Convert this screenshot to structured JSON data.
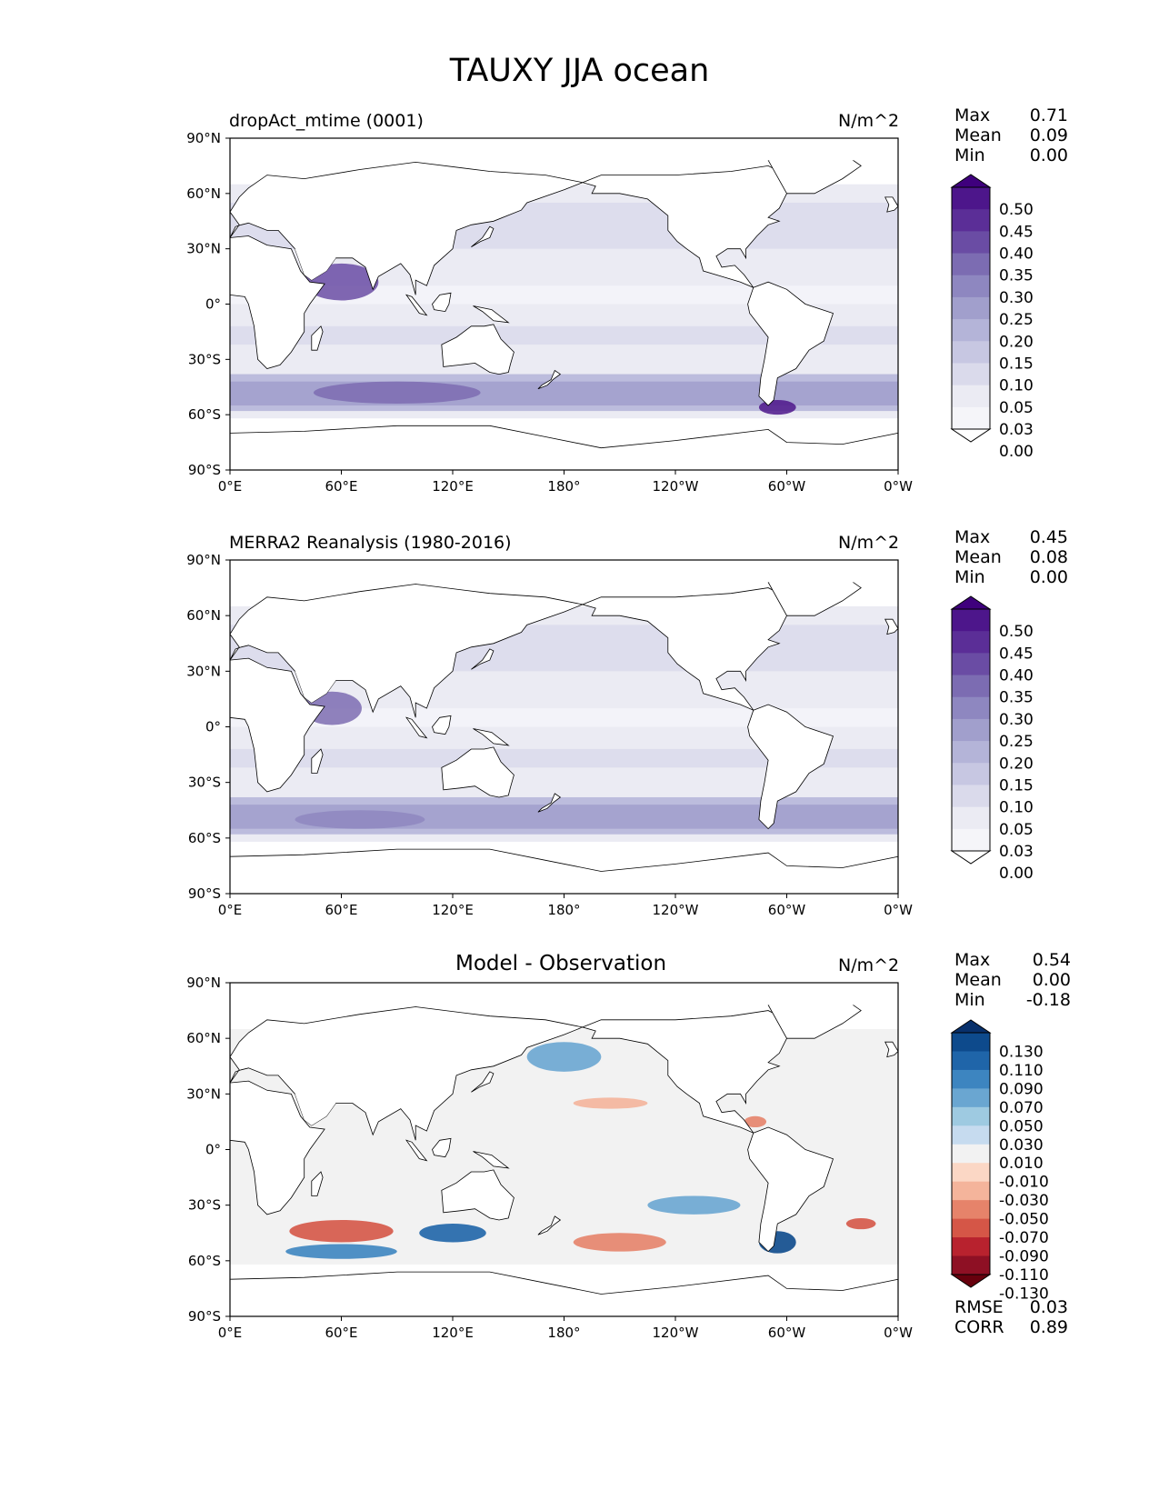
{
  "figure_title": "TAUXY JJA ocean",
  "lon_ticks": [
    "0°E",
    "60°E",
    "120°E",
    "180°",
    "120°W",
    "60°W",
    "0°W"
  ],
  "lat_ticks": [
    "90°N",
    "60°N",
    "30°N",
    "0°",
    "30°S",
    "60°S",
    "90°S"
  ],
  "panels": [
    {
      "title": "dropAct_mtime (0001)",
      "units": "N/m^2",
      "stats": {
        "labels": [
          "Max",
          "Mean",
          "Min"
        ],
        "values": [
          "0.71",
          "0.09",
          "0.00"
        ]
      },
      "colorbar": {
        "labels": [
          "0.50",
          "0.45",
          "0.40",
          "0.35",
          "0.30",
          "0.25",
          "0.20",
          "0.15",
          "0.10",
          "0.05",
          "0.03",
          "0.00"
        ],
        "colors": [
          "#3f007d",
          "#4d168b",
          "#5b2e97",
          "#6a4ca4",
          "#7c6cb2",
          "#8e87c0",
          "#a19fcc",
          "#b4b4d8",
          "#c7c7e2",
          "#dadaeb",
          "#ebebf3",
          "#f5f5f9",
          "#ffffff"
        ]
      }
    },
    {
      "title": "MERRA2 Reanalysis (1980-2016)",
      "units": "N/m^2",
      "stats": {
        "labels": [
          "Max",
          "Mean",
          "Min"
        ],
        "values": [
          "0.45",
          "0.08",
          "0.00"
        ]
      },
      "colorbar": {
        "labels": [
          "0.50",
          "0.45",
          "0.40",
          "0.35",
          "0.30",
          "0.25",
          "0.20",
          "0.15",
          "0.10",
          "0.05",
          "0.03",
          "0.00"
        ],
        "colors": [
          "#3f007d",
          "#4d168b",
          "#5b2e97",
          "#6a4ca4",
          "#7c6cb2",
          "#8e87c0",
          "#a19fcc",
          "#b4b4d8",
          "#c7c7e2",
          "#dadaeb",
          "#ebebf3",
          "#f5f5f9",
          "#ffffff"
        ]
      }
    },
    {
      "title": "Model - Observation",
      "units": "N/m^2",
      "stats": {
        "labels": [
          "Max",
          "Mean",
          "Min"
        ],
        "values": [
          "0.54",
          "0.00",
          "-0.18"
        ]
      },
      "colorbar": {
        "labels": [
          "0.130",
          "0.110",
          "0.090",
          "0.070",
          "0.050",
          "0.030",
          "0.010",
          "-0.010",
          "-0.030",
          "-0.050",
          "-0.070",
          "-0.090",
          "-0.110",
          "-0.130"
        ],
        "colors": [
          "#08306b",
          "#0d4a8c",
          "#1f65a9",
          "#3d85c0",
          "#6aa6d1",
          "#9ecae1",
          "#c6dbef",
          "#f2f2f2",
          "#fbd7c5",
          "#f4b49b",
          "#e6836a",
          "#d55647",
          "#b8222e",
          "#8e1024",
          "#67000d"
        ]
      },
      "extra_stats": {
        "labels": [
          "RMSE",
          "CORR"
        ],
        "values": [
          "0.03",
          "0.89"
        ]
      }
    }
  ],
  "chart_data": [
    {
      "type": "heatmap",
      "title": "dropAct_mtime (0001)",
      "units": "N/m^2",
      "season": "JJA",
      "xrange": [
        0,
        360
      ],
      "yrange": [
        -90,
        90
      ],
      "features": [
        {
          "region": "Southern Ocean 40-60S",
          "value": 0.3
        },
        {
          "region": "Arabian Sea",
          "value": 0.35
        },
        {
          "region": "Drake Passage",
          "value": 0.45
        },
        {
          "region": "North Pacific",
          "value": 0.1
        },
        {
          "region": "Tropical Pacific",
          "value": 0.08
        },
        {
          "region": "South Indian Ocean 10-20S",
          "value": 0.15
        },
        {
          "region": "North Atlantic",
          "value": 0.1
        }
      ]
    },
    {
      "type": "heatmap",
      "title": "MERRA2 Reanalysis (1980-2016)",
      "units": "N/m^2",
      "season": "JJA",
      "xrange": [
        0,
        360
      ],
      "yrange": [
        -90,
        90
      ],
      "features": [
        {
          "region": "Southern Ocean 40-60S",
          "value": 0.25
        },
        {
          "region": "Arabian Sea",
          "value": 0.3
        },
        {
          "region": "Drake Passage",
          "value": 0.2
        },
        {
          "region": "North Pacific",
          "value": 0.08
        },
        {
          "region": "Tropical Pacific",
          "value": 0.08
        },
        {
          "region": "South Indian Ocean 10-20S",
          "value": 0.15
        },
        {
          "region": "North Atlantic",
          "value": 0.1
        }
      ]
    },
    {
      "type": "heatmap",
      "title": "Model - Observation",
      "units": "N/m^2",
      "season": "JJA",
      "xrange": [
        0,
        360
      ],
      "yrange": [
        -90,
        90
      ],
      "features": [
        {
          "region": "South of Australia",
          "value": 0.11
        },
        {
          "region": "Drake Passage",
          "value": 0.13
        },
        {
          "region": "South Indian Ocean 40-50S",
          "value": -0.09
        },
        {
          "region": "South Pacific 45-55S",
          "value": -0.07
        },
        {
          "region": "South Atlantic 40S",
          "value": -0.09
        },
        {
          "region": "North Pacific 50N",
          "value": 0.07
        },
        {
          "region": "South Pacific 30S",
          "value": 0.07
        },
        {
          "region": "Caribbean",
          "value": -0.05
        }
      ]
    }
  ]
}
